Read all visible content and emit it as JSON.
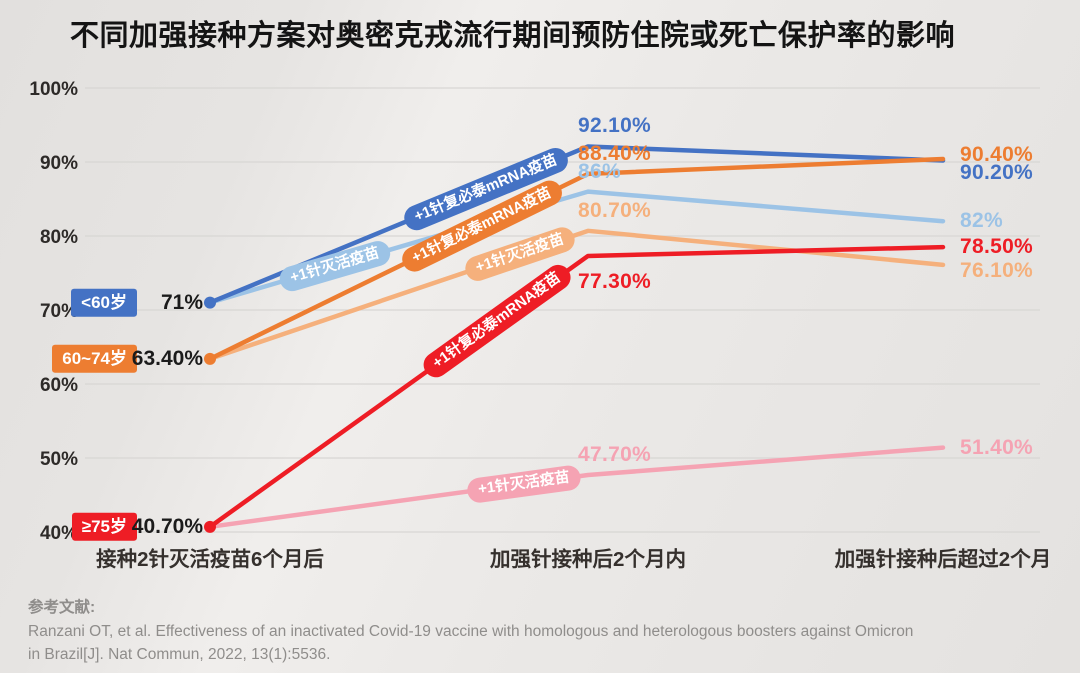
{
  "chart_data": {
    "type": "line",
    "title": "不同加强接种方案对奥密克戎流行期间预防住院或死亡保护率的影响",
    "x_categories": [
      "接种2针灭活疫苗6个月后",
      "加强针接种后2个月内",
      "加强针接种后超过2个月"
    ],
    "y_ticks": [
      "100%",
      "90%",
      "80%",
      "70%",
      "60%",
      "50%",
      "40%"
    ],
    "y_range": [
      40,
      100
    ],
    "grid": true,
    "legend_position": "on-line-badges",
    "groups": [
      {
        "age_label": "<60岁",
        "color": "#4472C4",
        "start_label": "71%",
        "series": [
          {
            "name": "+1针复必泰mRNA疫苗",
            "color": "#4472C4",
            "values": [
              71,
              92.1,
              90.2
            ],
            "mid_label": "92.10%",
            "end_label": "90.20%",
            "badge_t": 0.73,
            "mid_side": "above",
            "end_dy": 12
          },
          {
            "name": "+1针灭活疫苗",
            "color": "#9CC3E6",
            "values": [
              71,
              86,
              82
            ],
            "mid_label": "86%",
            "end_label": "82%",
            "badge_t": 0.33,
            "mid_side": "above",
            "end_dy": 0
          }
        ]
      },
      {
        "age_label": "60~74岁",
        "color": "#ED7D31",
        "start_label": "63.40%",
        "series": [
          {
            "name": "+1针复必泰mRNA疫苗",
            "color": "#ED7D31",
            "values": [
              63.4,
              88.4,
              90.4
            ],
            "mid_label": "88.40%",
            "end_label": "90.40%",
            "badge_t": 0.72,
            "mid_side": "above",
            "end_dy": -4
          },
          {
            "name": "+1针灭活疫苗",
            "color": "#F5B07C",
            "values": [
              63.4,
              80.7,
              76.1
            ],
            "mid_label": "80.70%",
            "end_label": "76.10%",
            "badge_t": 0.82,
            "mid_side": "above",
            "end_dy": 6
          }
        ]
      },
      {
        "age_label": "≥75岁",
        "color": "#EE1D25",
        "start_label": "40.70%",
        "series": [
          {
            "name": "+1针复必泰mRNA疫苗",
            "color": "#EE1D25",
            "values": [
              40.7,
              77.3,
              78.5
            ],
            "mid_label": "77.30%",
            "end_label": "78.50%",
            "badge_t": 0.76,
            "mid_side": "below",
            "end_dy": 0
          },
          {
            "name": "+1针灭活疫苗",
            "color": "#F5A3B3",
            "values": [
              40.7,
              47.7,
              51.4
            ],
            "mid_label": "47.70%",
            "end_label": "51.40%",
            "badge_t": 0.83,
            "mid_side": "above",
            "end_dy": 0
          }
        ]
      }
    ]
  },
  "reference": {
    "heading": "参考文献:",
    "lines": [
      "Ranzani OT, et al. Effectiveness of an inactivated Covid-19 vaccine with homologous and heterologous boosters against Omicron",
      "in Brazil[J]. Nat Commun, 2022, 13(1):5536."
    ]
  }
}
